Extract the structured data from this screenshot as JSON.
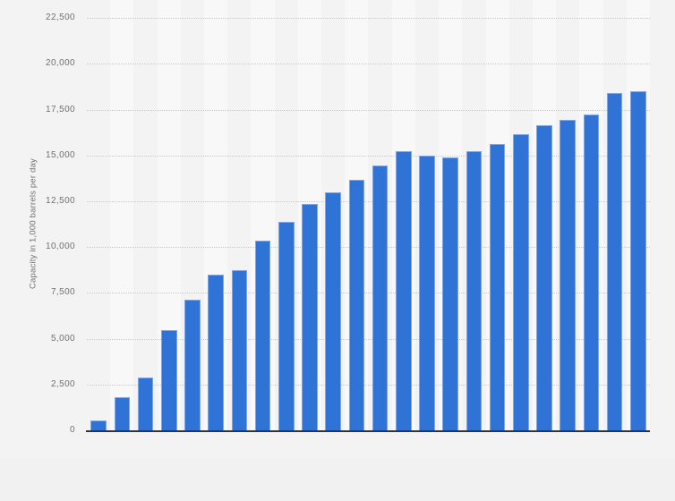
{
  "page": {
    "background_color": "#f1f1f2",
    "chart_background_color": "#f3f3f4",
    "band_highlight_color": "#f8f8f9"
  },
  "chart": {
    "y_axis_title": "Capacity in 1,000 barrels per day",
    "y_tick_labels": [
      "0",
      "2,500",
      "5,000",
      "7,500",
      "10,000",
      "12,500",
      "15,000",
      "17,500",
      "20,000",
      "22,500"
    ],
    "bar_fill_color": "#2e73d5",
    "bar_border_color": "#81a5e4",
    "gridline_color": "#c7c8ca",
    "axis_line_color": "#333436",
    "tick_text_color": "#707070"
  },
  "chart_data": {
    "type": "bar",
    "title": "",
    "xlabel": "",
    "ylabel": "Capacity in 1,000 barrels per day",
    "ylim": [
      0,
      22500
    ],
    "y_tick_step": 2500,
    "grid": "horizontal dotted gridlines on",
    "legend": "none",
    "x_tick_labels": [],
    "x_axis_labels_visible": false,
    "series_color": "#2e73d5",
    "values": [
      560,
      1820,
      2890,
      5450,
      7150,
      8500,
      8720,
      10350,
      11370,
      12330,
      13000,
      13650,
      14450,
      15250,
      15000,
      14900,
      15230,
      15650,
      16150,
      16640,
      16950,
      17250,
      18410,
      18530
    ]
  }
}
